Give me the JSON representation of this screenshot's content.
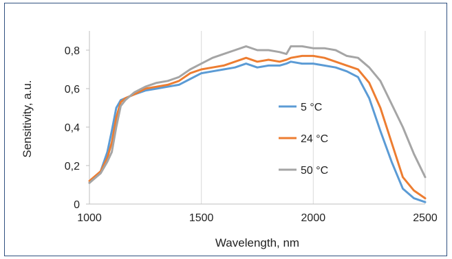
{
  "chart_data": {
    "type": "line",
    "title": "",
    "xlabel": "Wavelength, nm",
    "ylabel": "Sensitivity, a.u.",
    "xlim": [
      1000,
      2500
    ],
    "ylim": [
      0,
      0.9
    ],
    "xticks": [
      "1000",
      "1500",
      "2000",
      "2500"
    ],
    "xtick_values": [
      1000,
      1500,
      2000,
      2500
    ],
    "yticks": [
      "0",
      "0,2",
      "0,4",
      "0,6",
      "0,8"
    ],
    "ytick_values": [
      0,
      0.2,
      0.4,
      0.6,
      0.8
    ],
    "grid": "vertical",
    "legend_position": "right",
    "x": [
      1000,
      1050,
      1080,
      1100,
      1120,
      1140,
      1160,
      1200,
      1250,
      1300,
      1350,
      1400,
      1450,
      1500,
      1550,
      1600,
      1650,
      1700,
      1750,
      1800,
      1850,
      1880,
      1900,
      1950,
      2000,
      2050,
      2100,
      2150,
      2200,
      2250,
      2300,
      2350,
      2400,
      2450,
      2500
    ],
    "series": [
      {
        "name": "5 °C",
        "color": "#5b9bd5",
        "values": [
          0.11,
          0.17,
          0.27,
          0.38,
          0.5,
          0.54,
          0.55,
          0.57,
          0.59,
          0.6,
          0.61,
          0.62,
          0.65,
          0.68,
          0.69,
          0.7,
          0.71,
          0.73,
          0.71,
          0.72,
          0.72,
          0.73,
          0.74,
          0.73,
          0.73,
          0.72,
          0.71,
          0.69,
          0.66,
          0.55,
          0.38,
          0.22,
          0.08,
          0.03,
          0.01
        ]
      },
      {
        "name": "24 °C",
        "color": "#ed7d31",
        "values": [
          0.12,
          0.17,
          0.24,
          0.32,
          0.45,
          0.53,
          0.55,
          0.57,
          0.6,
          0.61,
          0.62,
          0.64,
          0.68,
          0.7,
          0.71,
          0.72,
          0.74,
          0.76,
          0.74,
          0.75,
          0.74,
          0.75,
          0.76,
          0.77,
          0.77,
          0.76,
          0.74,
          0.72,
          0.7,
          0.63,
          0.5,
          0.32,
          0.14,
          0.07,
          0.03
        ]
      },
      {
        "name": "50 °C",
        "color": "#a5a5a5",
        "values": [
          0.11,
          0.16,
          0.22,
          0.27,
          0.4,
          0.51,
          0.54,
          0.58,
          0.61,
          0.63,
          0.64,
          0.66,
          0.7,
          0.73,
          0.76,
          0.78,
          0.8,
          0.82,
          0.8,
          0.8,
          0.79,
          0.78,
          0.82,
          0.82,
          0.81,
          0.81,
          0.8,
          0.77,
          0.76,
          0.71,
          0.64,
          0.52,
          0.4,
          0.26,
          0.14
        ]
      }
    ]
  }
}
